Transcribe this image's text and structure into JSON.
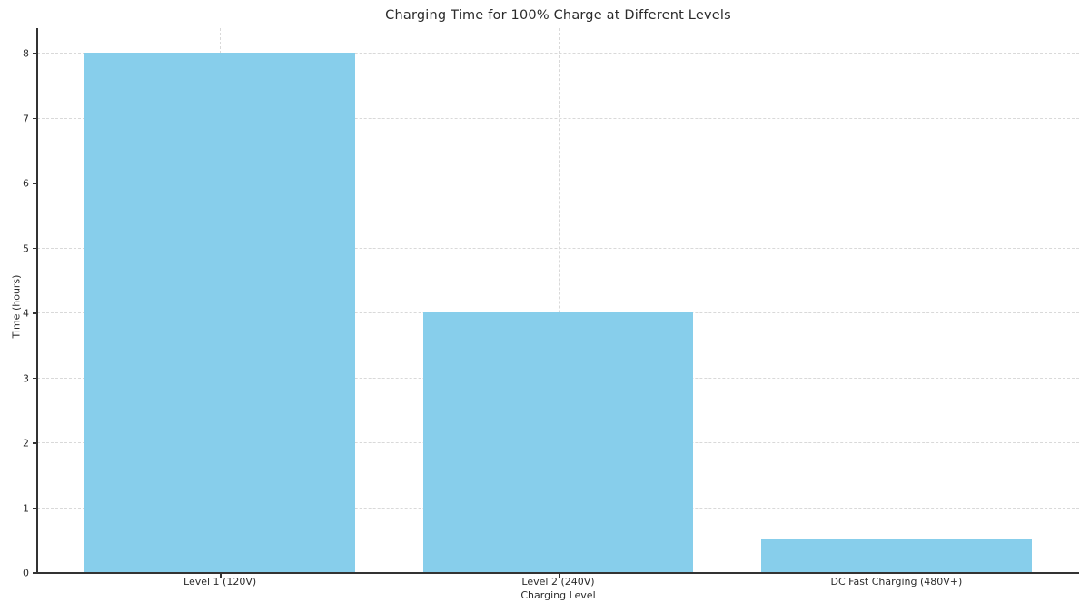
{
  "chart_data": {
    "type": "bar",
    "title": "Charging Time for 100% Charge at Different Levels",
    "xlabel": "Charging Level",
    "ylabel": "Time (hours)",
    "categories": [
      "Level 1 (120V)",
      "Level 2 (240V)",
      "DC Fast Charging (480V+)"
    ],
    "values": [
      8,
      4,
      0.5
    ],
    "yticks": [
      0,
      1,
      2,
      3,
      4,
      5,
      6,
      7,
      8
    ],
    "ylim": [
      0,
      8
    ],
    "legend": "none",
    "grid": "dashed light-grey, horizontal and vertical",
    "colors": {
      "bar": "#87CEEB",
      "axis": "#333333",
      "grid": "#d9d9d9",
      "text": "#2b2b2b",
      "background": "#ffffff"
    }
  }
}
